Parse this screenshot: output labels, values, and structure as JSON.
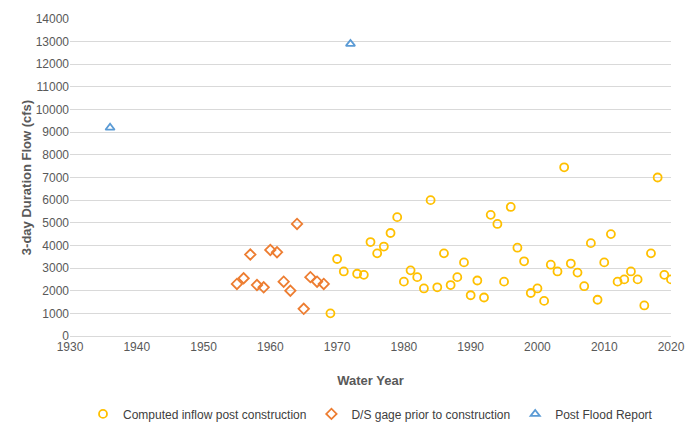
{
  "chart_data": {
    "type": "scatter",
    "x_label": "Water Year",
    "y_label": "3-day Duration Flow (cfs)",
    "xlim": [
      1930,
      2020
    ],
    "xticks": [
      1930,
      1940,
      1950,
      1960,
      1970,
      1980,
      1990,
      2000,
      2010,
      2020
    ],
    "ylim": [
      0,
      14000
    ],
    "yticks": [
      0,
      1000,
      2000,
      3000,
      4000,
      5000,
      6000,
      7000,
      8000,
      9000,
      10000,
      11000,
      12000,
      13000,
      14000
    ],
    "grid": true,
    "legend": "bottom",
    "series": [
      {
        "name": "Computed inflow post construction",
        "color": "#FFC000",
        "marker": "circle",
        "x": [
          1969,
          1970,
          1971,
          1973,
          1974,
          1975,
          1976,
          1977,
          1978,
          1979,
          1980,
          1981,
          1982,
          1983,
          1984,
          1985,
          1986,
          1987,
          1988,
          1989,
          1990,
          1991,
          1992,
          1993,
          1994,
          1995,
          1996,
          1997,
          1998,
          1999,
          2000,
          2001,
          2002,
          2003,
          2004,
          2005,
          2006,
          2007,
          2008,
          2009,
          2010,
          2011,
          2012,
          2013,
          2014,
          2015,
          2016,
          2017,
          2018,
          2019,
          2020
        ],
        "values": [
          1000,
          3400,
          2850,
          2750,
          2700,
          4150,
          3650,
          3950,
          4550,
          5250,
          2400,
          2900,
          2600,
          2100,
          6000,
          2150,
          3650,
          2250,
          2600,
          3250,
          1800,
          2450,
          1700,
          5350,
          4950,
          2400,
          5700,
          3900,
          3300,
          1900,
          2100,
          1550,
          3150,
          2850,
          7450,
          3200,
          2800,
          2200,
          4100,
          1600,
          3250,
          4500,
          2400,
          2500,
          2850,
          2500,
          1350,
          3650,
          7000,
          2700,
          2500
        ]
      },
      {
        "name": "D/S gage prior to construction",
        "color": "#ED7D31",
        "marker": "diamond",
        "x": [
          1955,
          1956,
          1957,
          1958,
          1959,
          1960,
          1961,
          1962,
          1963,
          1964,
          1965,
          1966,
          1967,
          1968
        ],
        "values": [
          2300,
          2550,
          3600,
          2250,
          2150,
          3800,
          3700,
          2400,
          2000,
          4950,
          1200,
          2600,
          2400,
          2300
        ]
      },
      {
        "name": "Post Flood Report",
        "color": "#5B9BD5",
        "marker": "triangle",
        "x": [
          1936,
          1972
        ],
        "values": [
          9200,
          12900
        ]
      }
    ]
  }
}
